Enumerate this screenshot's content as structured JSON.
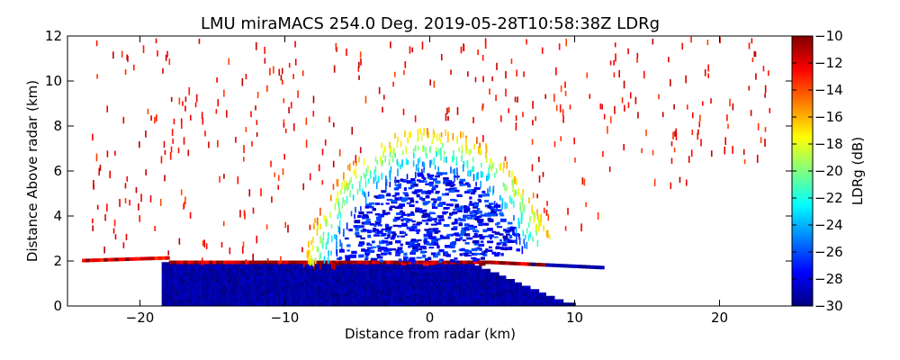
{
  "chart_data": {
    "type": "heatmap",
    "title": "LMU miraMACS 254.0 Deg. 2019-05-28T10:58:38Z  LDRg",
    "xlabel": "Distance from radar (km)",
    "ylabel": "Distance Above radar  (km)",
    "xlim": [
      -25,
      25
    ],
    "ylim": [
      0,
      12
    ],
    "xticks": [
      -20,
      -10,
      0,
      10,
      20
    ],
    "yticks": [
      0,
      2,
      4,
      6,
      8,
      10,
      12
    ],
    "colorbar": {
      "label": "LDRg (dB)",
      "range": [
        -30,
        -10
      ],
      "ticks": [
        -10,
        -12,
        -14,
        -16,
        -18,
        -20,
        -22,
        -24,
        -26,
        -28,
        -30
      ],
      "colormap": "jet"
    },
    "features": [
      {
        "name": "low-level band",
        "y_bottom": 0.0,
        "y_top": 1.8,
        "value": -30
      },
      {
        "name": "melting layer",
        "y": 1.9,
        "value": -13
      },
      {
        "name": "ice cloud core",
        "y_bottom": 2.0,
        "y_top": 6.0,
        "value": -28
      },
      {
        "name": "upper cloud edge",
        "y_bottom": 6.0,
        "y_top": 8.0,
        "value": -20
      },
      {
        "name": "cloud top scatter",
        "y_bottom": 8.0,
        "y_top": 12.0,
        "value": -11
      }
    ]
  }
}
